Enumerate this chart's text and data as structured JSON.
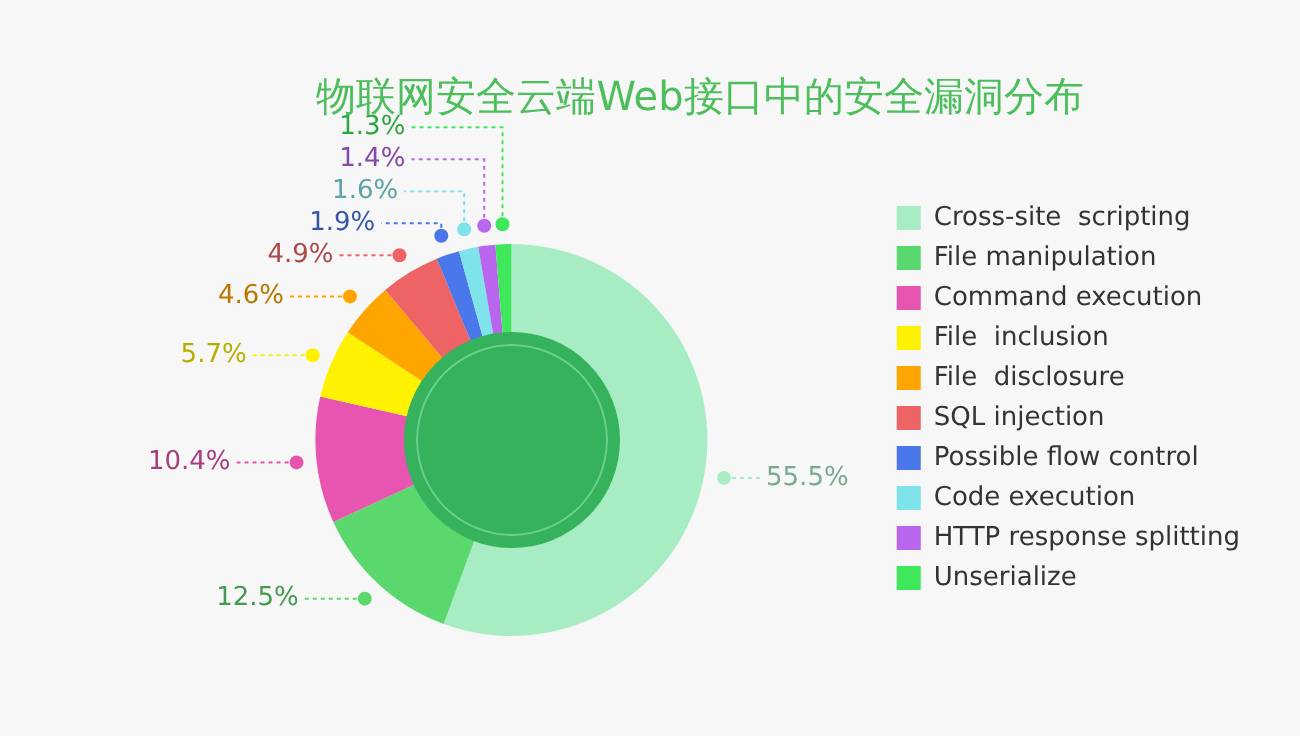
{
  "chart_data": {
    "type": "donut",
    "title": "物联网安全云端Web接口中的安全漏洞分布",
    "categories": [
      "Cross-site  scripting",
      "File manipulation",
      "Command execution",
      "File  inclusion",
      "File  disclosure",
      "SQL injection",
      "Possible flow control",
      "Code execution",
      "HTTP response splitting",
      "Unserialize"
    ],
    "values": [
      55.5,
      12.5,
      10.4,
      5.7,
      4.6,
      4.9,
      1.9,
      1.6,
      1.4,
      1.3
    ],
    "value_labels": [
      "55.5%",
      "12.5%",
      "10.4%",
      "5.7%",
      "4.6%",
      "4.9%",
      "1.9%",
      "1.6%",
      "1.4%",
      "1.3%"
    ],
    "colors": [
      "#a8ecc4",
      "#5ad86e",
      "#e855b0",
      "#fff200",
      "#ffa500",
      "#ee6464",
      "#4a78ea",
      "#7ee3ea",
      "#b866ee",
      "#3ee85a"
    ],
    "legend": "right"
  }
}
